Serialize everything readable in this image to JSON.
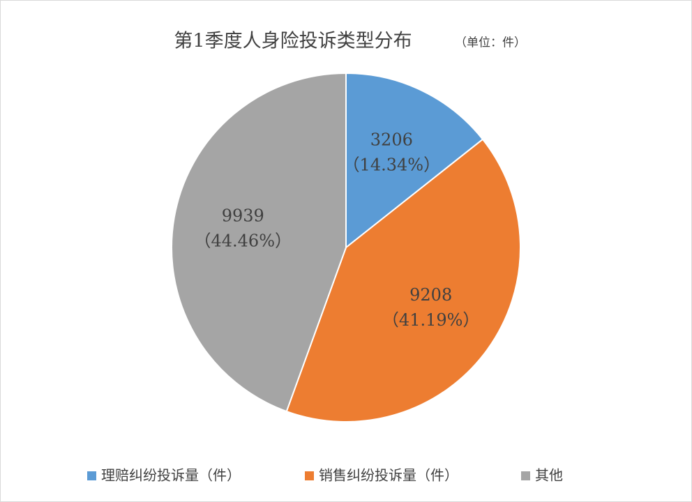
{
  "chart_data": {
    "type": "pie",
    "title": "第1季度人身险投诉类型分布",
    "subtitle": "（单位：件）",
    "categories": [
      "理赔纠纷投诉量（件）",
      "销售纠纷投诉量（件）",
      "其他"
    ],
    "values": [
      3206,
      9208,
      9939
    ],
    "percents": [
      14.34,
      41.19,
      44.46
    ],
    "percent_labels": [
      "（14.34%）",
      "（41.19%）",
      "（44.46%）"
    ],
    "colors": [
      "#5b9bd5",
      "#ed7d31",
      "#a5a5a5"
    ],
    "legend": "bottom"
  }
}
